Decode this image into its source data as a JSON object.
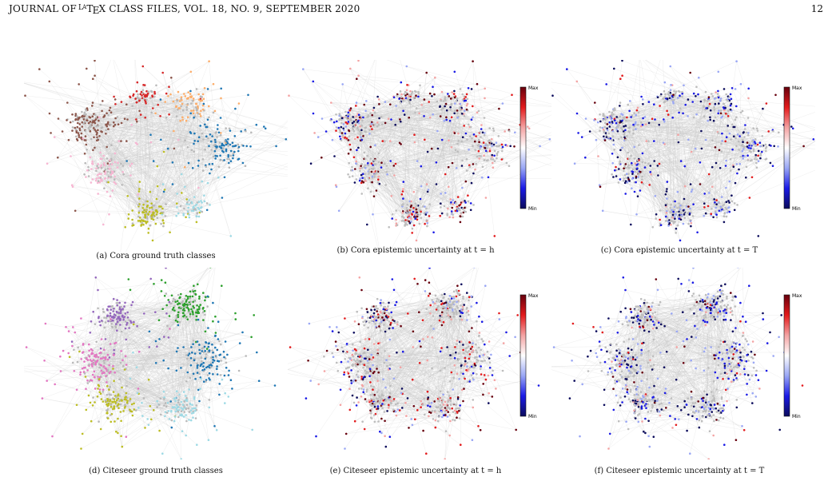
{
  "header": {
    "journal": "JOURNAL OF LaTeX CLASS FILES, VOL. 18, NO. 9, SEPTEMBER 2020",
    "journal_parts": [
      "JOURNAL OF ",
      "L",
      "A",
      "T",
      "E",
      "X CLASS FILES, VOL. 18, NO. 9, SEPTEMBER 2020"
    ],
    "page": "12"
  },
  "colorbar": {
    "max_label": "Max",
    "min_label": "Min",
    "colors": [
      "#67000d",
      "#e31a1c",
      "#f4a3a3",
      "#ffffff",
      "#9aa7f5",
      "#1a1ae6",
      "#0b0b5c"
    ]
  },
  "panels": [
    {
      "id": "a",
      "caption": "(a) Cora ground truth classes",
      "kind": "classes",
      "dataset": "cora",
      "class_colors": [
        "#d62728",
        "#fdae6b",
        "#8c564b",
        "#1f77b4",
        "#f7b6d2",
        "#bcbd22",
        "#9edae5"
      ]
    },
    {
      "id": "b",
      "caption": "(b) Cora epistemic uncertainty at t = h",
      "kind": "uncertainty",
      "dataset": "cora"
    },
    {
      "id": "c",
      "caption": "(c) Cora epistemic uncertainty at t = T",
      "kind": "uncertainty",
      "dataset": "cora"
    },
    {
      "id": "d",
      "caption": "(d) Citeseer ground truth classes",
      "kind": "classes",
      "dataset": "citeseer",
      "class_colors": [
        "#9467bd",
        "#2ca02c",
        "#e377c2",
        "#1f77b4",
        "#bcbd22",
        "#9edae5"
      ]
    },
    {
      "id": "e",
      "caption": "(e) Citeseer epistemic uncertainty at t = h",
      "kind": "uncertainty",
      "dataset": "citeseer"
    },
    {
      "id": "f",
      "caption": "(f) Citeseer epistemic uncertainty at t = T",
      "kind": "uncertainty",
      "dataset": "citeseer"
    }
  ]
}
